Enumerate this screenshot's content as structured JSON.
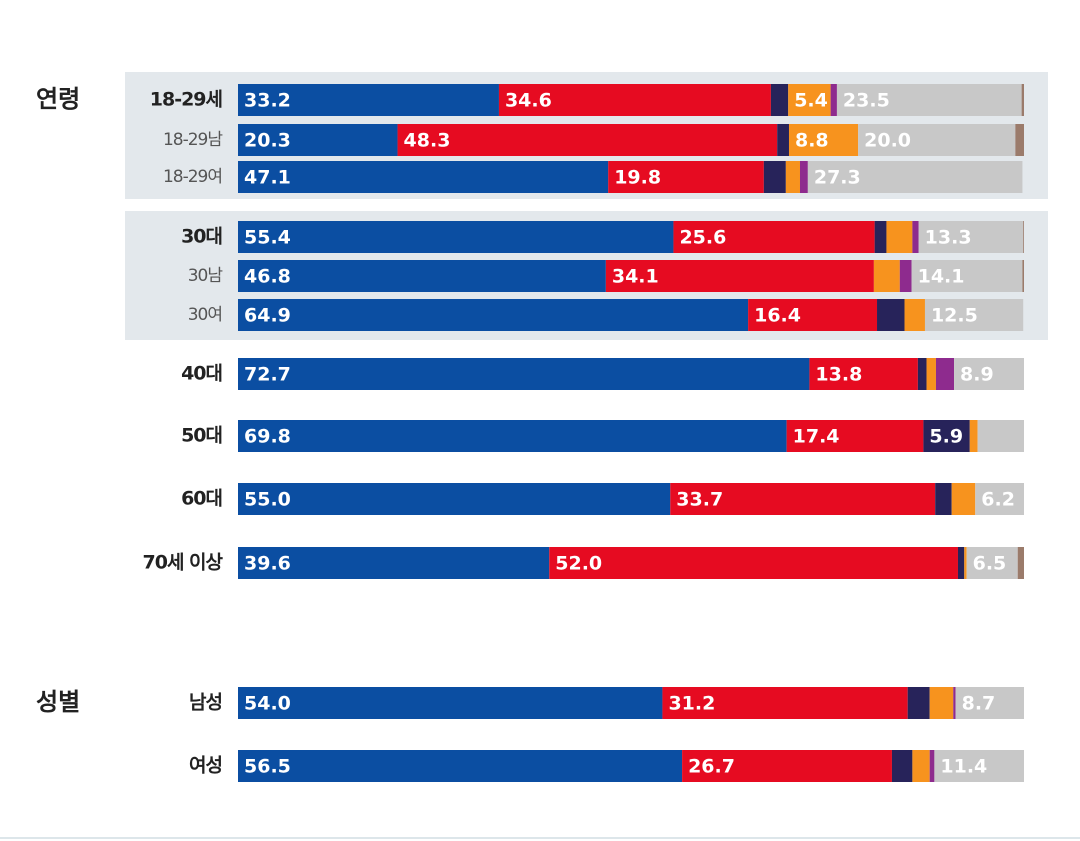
{
  "chart_data": {
    "type": "stacked-bar-horizontal",
    "group_labels": [
      "연령",
      "성별"
    ],
    "categories": [
      "18-29세",
      "18-29남",
      "18-29여",
      "30대",
      "30남",
      "30여",
      "40대",
      "50대",
      "60대",
      "70세 이상",
      "남성",
      "여성"
    ],
    "xlim": [
      0,
      100
    ],
    "series": [
      {
        "color": "#0b4ea2",
        "values": [
          33.2,
          20.3,
          47.1,
          55.4,
          46.8,
          64.9,
          72.7,
          69.8,
          55.0,
          39.6,
          54.0,
          56.5
        ],
        "value_labels": [
          "33.2",
          "20.3",
          "47.1",
          "55.4",
          "46.8",
          "64.9",
          "72.7",
          "69.8",
          "55.0",
          "39.6",
          "54.0",
          "56.5"
        ]
      },
      {
        "color": "#e60b21",
        "values": [
          34.6,
          48.3,
          19.8,
          25.6,
          34.1,
          16.4,
          13.8,
          17.4,
          33.7,
          52.0,
          31.2,
          26.7
        ],
        "value_labels": [
          "34.6",
          "48.3",
          "19.8",
          "25.6",
          "34.1",
          "16.4",
          "13.8",
          "17.4",
          "33.7",
          "52.0",
          "31.2",
          "26.7"
        ]
      },
      {
        "color": "#27235a",
        "values": [
          2.2,
          1.5,
          2.8,
          1.5,
          0,
          3.5,
          1.1,
          5.9,
          2.1,
          0.8,
          2.8,
          2.6
        ],
        "value_labels": [
          null,
          null,
          null,
          null,
          null,
          null,
          null,
          "5.9",
          null,
          null,
          null,
          null
        ]
      },
      {
        "color": "#f7931e",
        "values": [
          5.4,
          8.8,
          1.8,
          3.3,
          3.3,
          2.6,
          1.2,
          1.0,
          3.0,
          0.3,
          3.0,
          2.2
        ],
        "value_labels": [
          "5.4",
          "8.8",
          null,
          null,
          null,
          null,
          null,
          null,
          null,
          null,
          null,
          null
        ]
      },
      {
        "color": "#8e2b8e",
        "values": [
          0.8,
          0,
          1.0,
          0.8,
          1.5,
          0,
          2.3,
          0,
          0,
          0,
          0.3,
          0.6
        ],
        "value_labels": [
          null,
          null,
          null,
          null,
          null,
          null,
          null,
          null,
          null,
          null,
          null,
          null
        ]
      },
      {
        "color": "#c8c8c8",
        "values": [
          23.5,
          20.0,
          27.3,
          13.3,
          14.1,
          12.5,
          8.9,
          5.9,
          6.2,
          6.5,
          8.7,
          11.4
        ],
        "value_labels": [
          "23.5",
          "20.0",
          "27.3",
          "13.3",
          "14.1",
          "12.5",
          "8.9",
          null,
          "6.2",
          "6.5",
          "8.7",
          "11.4"
        ]
      },
      {
        "color": "#9b7b6b",
        "values": [
          0.3,
          1.1,
          0,
          0.1,
          0.2,
          0,
          0,
          0,
          0,
          0.8,
          0,
          0
        ],
        "value_labels": [
          null,
          null,
          null,
          null,
          null,
          null,
          null,
          null,
          null,
          null,
          null,
          null
        ]
      }
    ]
  }
}
